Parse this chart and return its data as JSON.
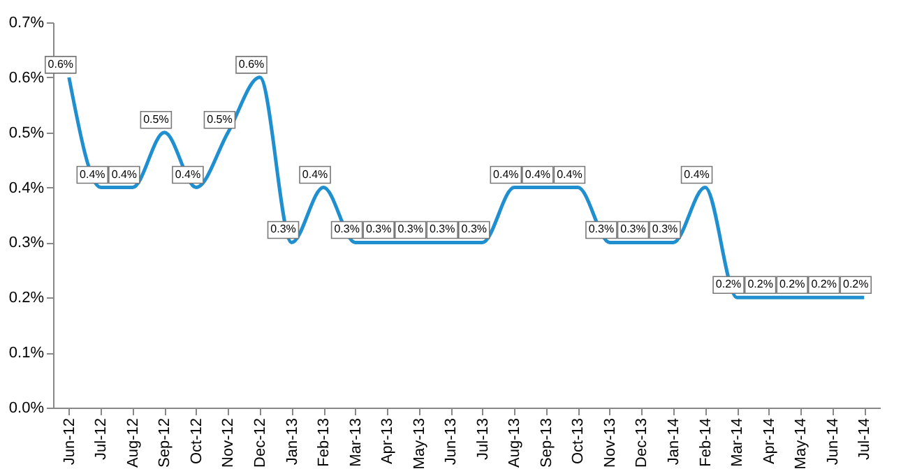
{
  "chart_data": {
    "type": "line",
    "categories": [
      "Jun-12",
      "Jul-12",
      "Aug-12",
      "Sep-12",
      "Oct-12",
      "Nov-12",
      "Dec-12",
      "Jan-13",
      "Feb-13",
      "Mar-13",
      "Apr-13",
      "May-13",
      "Jun-13",
      "Jul-13",
      "Aug-13",
      "Sep-13",
      "Oct-13",
      "Nov-13",
      "Dec-13",
      "Jan-14",
      "Feb-14",
      "Mar-14",
      "Apr-14",
      "May-14",
      "Jun-14",
      "Jul-14"
    ],
    "series": [
      {
        "color": "#1f8fd0",
        "values": [
          0.6,
          0.4,
          0.4,
          0.5,
          0.4,
          0.5,
          0.6,
          0.3,
          0.4,
          0.3,
          0.3,
          0.3,
          0.3,
          0.3,
          0.4,
          0.4,
          0.4,
          0.3,
          0.3,
          0.3,
          0.4,
          0.2,
          0.2,
          0.2,
          0.2,
          0.2
        ],
        "value_labels": [
          "0.6%",
          "0.4%",
          "0.4%",
          "0.5%",
          "0.4%",
          "0.5%",
          "0.6%",
          "0.3%",
          "0.4%",
          "0.3%",
          "0.3%",
          "0.3%",
          "0.3%",
          "0.3%",
          "0.4%",
          "0.4%",
          "0.4%",
          "0.3%",
          "0.3%",
          "0.3%",
          "0.4%",
          "0.2%",
          "0.2%",
          "0.2%",
          "0.2%",
          "0.2%"
        ]
      }
    ],
    "ylim": [
      0,
      0.7
    ],
    "yticks": [
      {
        "value": 0,
        "label": "0.0%"
      },
      {
        "value": 0.1,
        "label": "0.1%"
      },
      {
        "value": 0.2,
        "label": "0.2%"
      },
      {
        "value": 0.3,
        "label": "0.3%"
      },
      {
        "value": 0.4,
        "label": "0.4%"
      },
      {
        "value": 0.5,
        "label": "0.5%"
      },
      {
        "value": 0.6,
        "label": "0.6%"
      },
      {
        "value": 0.7,
        "label": "0.7%"
      }
    ],
    "grid": false,
    "marker": "none",
    "line_style": "solid"
  }
}
